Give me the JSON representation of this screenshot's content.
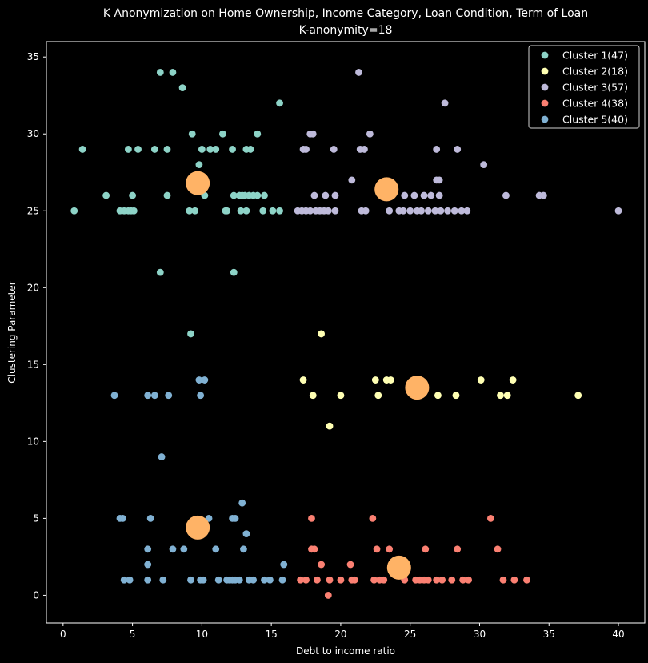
{
  "chart_data": {
    "type": "scatter",
    "title": "K Anonymization on Home Ownership, Income Category, Loan Condition, Term of Loan",
    "subtitle": "K-anonymity=18",
    "xlabel": "Debt to income ratio",
    "ylabel": "Clustering Parameter",
    "xlim": [
      -1.2,
      41.9
    ],
    "ylim": [
      -1.8,
      36.0
    ],
    "xticks": [
      0,
      5,
      10,
      15,
      20,
      25,
      30,
      35,
      40
    ],
    "yticks": [
      0,
      5,
      10,
      15,
      20,
      25,
      30,
      35
    ],
    "grid": false,
    "legend_position": "top-right",
    "series": [
      {
        "name": "Cluster 1(47)",
        "color": "#8dd3c7",
        "x": [
          7.0,
          7.9,
          8.6,
          15.6,
          1.4,
          4.7,
          5.4,
          6.6,
          7.5,
          9.3,
          10.0,
          10.6,
          11.0,
          11.5,
          12.2,
          13.2,
          13.5,
          14.0,
          9.8,
          3.1,
          5.0,
          7.5,
          10.2,
          12.3,
          12.7,
          12.9,
          13.1,
          13.4,
          13.7,
          14.0,
          14.5,
          0.8,
          4.1,
          4.4,
          4.7,
          4.9,
          5.1,
          9.1,
          9.5,
          11.7,
          11.8,
          12.8,
          13.2,
          14.4,
          15.1,
          15.6,
          7.0,
          12.3,
          9.2
        ],
        "y": [
          34,
          34,
          33,
          32,
          29,
          29,
          29,
          29,
          29,
          30,
          29,
          29,
          29,
          30,
          29,
          29,
          29,
          30,
          28,
          26,
          26,
          26,
          26,
          26,
          26,
          26,
          26,
          26,
          26,
          26,
          26,
          25,
          25,
          25,
          25,
          25,
          25,
          25,
          25,
          25,
          25,
          25,
          25,
          25,
          25,
          25,
          21,
          21,
          17
        ]
      },
      {
        "name": "Cluster 2(18)",
        "color": "#ffffb3",
        "x": [
          18.6,
          17.3,
          22.5,
          23.3,
          23.6,
          30.1,
          32.4,
          18.0,
          20.0,
          22.7,
          27.0,
          28.3,
          31.5,
          32.0,
          37.1,
          19.2
        ],
        "y": [
          17,
          14,
          14,
          14,
          14,
          14,
          14,
          13,
          13,
          13,
          13,
          13,
          13,
          13,
          13,
          11
        ]
      },
      {
        "name": "Cluster 3(57)",
        "color": "#bebada",
        "x": [
          21.3,
          27.5,
          17.8,
          18.0,
          22.1,
          17.3,
          17.5,
          19.5,
          21.4,
          21.7,
          26.9,
          28.4,
          30.3,
          20.8,
          26.9,
          27.1,
          18.1,
          18.9,
          19.6,
          23.3,
          24.6,
          25.3,
          26.0,
          26.5,
          27.1,
          31.9,
          34.3,
          34.6,
          16.9,
          17.2,
          17.5,
          17.8,
          18.2,
          18.5,
          18.8,
          19.1,
          19.6,
          21.5,
          21.8,
          23.5,
          24.2,
          24.5,
          25.0,
          25.5,
          25.8,
          26.3,
          26.8,
          27.2,
          27.7,
          28.2,
          28.7,
          29.1,
          40.0
        ],
        "y": [
          34,
          32,
          30,
          30,
          30,
          29,
          29,
          29,
          29,
          29,
          29,
          29,
          28,
          27,
          27,
          27,
          26,
          26,
          26,
          26,
          26,
          26,
          26,
          26,
          26,
          26,
          26,
          26,
          25,
          25,
          25,
          25,
          25,
          25,
          25,
          25,
          25,
          25,
          25,
          25,
          25,
          25,
          25,
          25,
          25,
          25,
          25,
          25,
          25,
          25,
          25,
          25,
          25
        ]
      },
      {
        "name": "Cluster 4(38)",
        "color": "#fb8072",
        "x": [
          17.9,
          22.3,
          30.8,
          17.9,
          18.1,
          22.6,
          23.5,
          26.1,
          28.4,
          31.3,
          18.6,
          20.7,
          17.1,
          17.5,
          18.3,
          19.2,
          20.0,
          20.8,
          21.0,
          22.4,
          22.8,
          23.1,
          24.6,
          25.4,
          25.7,
          26.0,
          26.3,
          26.9,
          27.3,
          28.0,
          28.8,
          29.2,
          31.7,
          32.5,
          33.4,
          19.1
        ],
        "y": [
          5,
          5,
          5,
          3,
          3,
          3,
          3,
          3,
          3,
          3,
          2,
          2,
          1,
          1,
          1,
          1,
          1,
          1,
          1,
          1,
          1,
          1,
          1,
          1,
          1,
          1,
          1,
          1,
          1,
          1,
          1,
          1,
          1,
          1,
          1,
          0
        ]
      },
      {
        "name": "Cluster 5(40)",
        "color": "#80b1d3",
        "x": [
          12.9,
          4.1,
          4.3,
          6.3,
          10.5,
          12.2,
          12.4,
          13.2,
          6.1,
          7.9,
          8.7,
          11.0,
          13.0,
          6.1,
          15.9,
          4.4,
          4.8,
          6.1,
          7.2,
          9.2,
          9.9,
          10.1,
          11.2,
          11.8,
          12.0,
          12.2,
          12.4,
          12.7,
          13.4,
          13.7,
          14.5,
          14.9,
          15.8,
          9.8,
          10.2,
          3.7,
          6.1,
          6.6,
          7.6,
          9.9,
          7.1
        ],
        "y": [
          6,
          5,
          5,
          5,
          5,
          5,
          5,
          4,
          3,
          3,
          3,
          3,
          3,
          2,
          2,
          1,
          1,
          1,
          1,
          1,
          1,
          1,
          1,
          1,
          1,
          1,
          1,
          1,
          1,
          1,
          1,
          1,
          1,
          14,
          14,
          13,
          13,
          13,
          13,
          13,
          9
        ]
      }
    ],
    "centroids": {
      "color": "#ffb366",
      "x": [
        9.7,
        23.3,
        25.5,
        9.7,
        24.2
      ],
      "y": [
        26.8,
        26.4,
        13.5,
        4.4,
        1.8
      ]
    }
  }
}
